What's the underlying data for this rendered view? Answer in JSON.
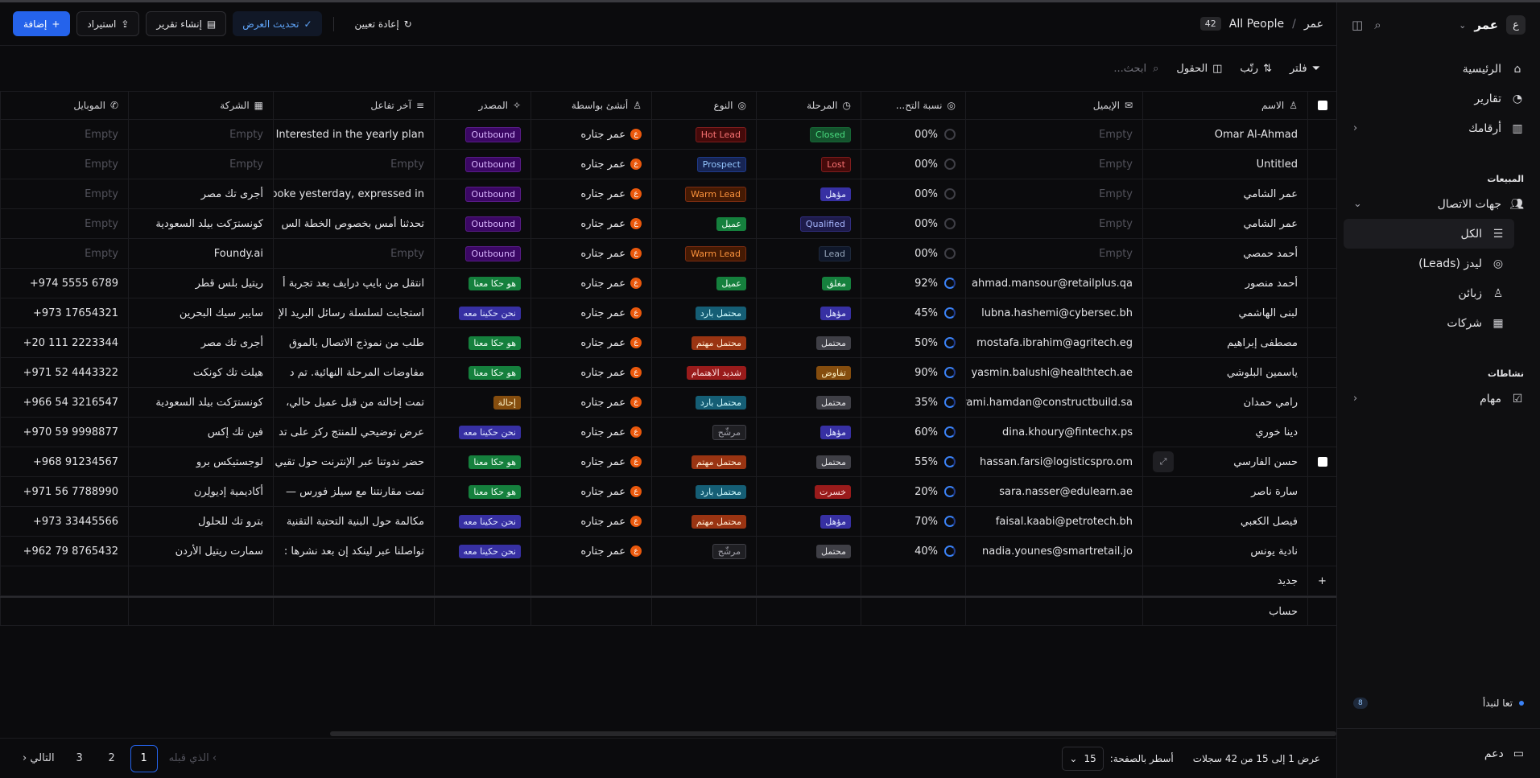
{
  "sidebar": {
    "avatar": "ع",
    "workspace": "عمر",
    "nav": [
      {
        "label": "الرئيسية"
      },
      {
        "label": "تقارير"
      },
      {
        "label": "أرقامك"
      }
    ],
    "sales_section": "المبيعات",
    "contacts": "جهات الاتصال",
    "contacts_sub": [
      {
        "label": "الكل"
      },
      {
        "label": "ليدز (Leads)"
      },
      {
        "label": "زبائن"
      },
      {
        "label": "شركات"
      }
    ],
    "activities_section": "نشاطات",
    "tasks": "مهام",
    "lets_start": "تعا لنبدأ",
    "lets_start_count": "8",
    "support": "دعم"
  },
  "topbar": {
    "crumb_root": "عمر",
    "crumb_sep": "/",
    "crumb_current": "All People",
    "count": "42",
    "reset": "إعادة تعيين",
    "update_view": "تحديث العرض",
    "create_report": "إنشاء تقرير",
    "import": "استيراد",
    "add": "إضافة"
  },
  "toolbar": {
    "filter": "فلتر",
    "sort": "رتّب",
    "fields": "الحقول",
    "search_placeholder": "ابحث..."
  },
  "columns": {
    "name": "الاسم",
    "email": "الإيميل",
    "pct": "نسبة التح...",
    "stage": "المرحلة",
    "type": "النوع",
    "created_by": "أنشئ بواسطة",
    "source": "المصدر",
    "last": "آخر تفاعل",
    "company": "الشركة",
    "mobile": "الموبايل"
  },
  "empty": "Empty",
  "rows": [
    {
      "name": "Omar Al-Ahmad",
      "email": "",
      "pct": "00%",
      "ring": false,
      "stage": "Closed",
      "stage_c": "t-green",
      "type": "Hot Lead",
      "type_c": "t-red",
      "by": "عمر جتاره",
      "src": "Outbound",
      "src_c": "t-purple",
      "last": "Interested in the yearly plan - ",
      "co": "",
      "mob": ""
    },
    {
      "name": "Untitled",
      "email": "",
      "pct": "00%",
      "ring": false,
      "stage": "Lost",
      "stage_c": "t-red",
      "type": "Prospect",
      "type_c": "t-blue",
      "by": "عمر جتاره",
      "src": "Outbound",
      "src_c": "t-purple",
      "last": "",
      "co": "",
      "mob": ""
    },
    {
      "name": "عمر الشامي",
      "email": "",
      "pct": "00%",
      "ring": false,
      "stage": "مؤهل",
      "stage_c": "t-indigo",
      "type": "Warm Lead",
      "type_c": "t-amber2",
      "by": "عمر جتاره",
      "src": "Outbound",
      "src_c": "t-purple",
      "last": "Spoke yesterday, expressed in",
      "co": "أجرى تك مصر",
      "mob": ""
    },
    {
      "name": "عمر الشامي",
      "email": "",
      "pct": "00%",
      "ring": false,
      "stage": "Qualified",
      "stage_c": "t-indigo2",
      "type": "عميل",
      "type_c": "t-green2",
      "by": "عمر جتاره",
      "src": "Outbound",
      "src_c": "t-purple",
      "last": "تحدثنا أمس بخصوص الخطة الس",
      "co": "كونسترَكت بيلد السعودية",
      "mob": ""
    },
    {
      "name": "أحمد حمصي",
      "email": "",
      "pct": "00%",
      "ring": false,
      "stage": "Lead",
      "stage_c": "t-slate",
      "type": "Warm Lead",
      "type_c": "t-amber2",
      "by": "عمر جتاره",
      "src": "Outbound",
      "src_c": "t-purple",
      "last": "",
      "co": "Foundy.ai",
      "mob": ""
    },
    {
      "name": "أحمد منصور",
      "email": "ahmad.mansour@retailplus.qa",
      "pct": "92%",
      "ring": true,
      "stage": "مغلق",
      "stage_c": "t-green2",
      "type": "عميل",
      "type_c": "t-green2",
      "by": "عمر جتاره",
      "src": "هو حكا معنا",
      "src_c": "t-green2",
      "last": "انتقل من بايپ درايف بعد تجربة أ",
      "co": "ريتيل بلس قطر",
      "mob": "+974 5555 6789"
    },
    {
      "name": "لبنى الهاشمي",
      "email": "lubna.hashemi@cybersec.bh",
      "pct": "45%",
      "ring": true,
      "stage": "مؤهل",
      "stage_c": "t-indigo",
      "type": "محتمل بارد",
      "type_c": "t-cyan",
      "by": "عمر جتاره",
      "src": "نحن حكينا معه",
      "src_c": "t-indigo",
      "last": "استجابت لسلسلة رسائل البريد الإ",
      "co": "سايبر سيك البحرين",
      "mob": "+973 17654321"
    },
    {
      "name": "مصطفى إبراهيم",
      "email": "mostafa.ibrahim@agritech.eg",
      "pct": "50%",
      "ring": true,
      "stage": "محتمل",
      "stage_c": "t-gray",
      "type": "محتمل مهتم",
      "type_c": "t-orange",
      "by": "عمر جتاره",
      "src": "هو حكا معنا",
      "src_c": "t-green2",
      "last": "طلب من نموذج الاتصال بالموق",
      "co": "أجرى تك مصر",
      "mob": "+20 111 2223344"
    },
    {
      "name": "ياسمين البلوشي",
      "email": "yasmin.balushi@healthtech.ae",
      "pct": "90%",
      "ring": true,
      "stage": "تفاوض",
      "stage_c": "t-amber",
      "type": "شديد الاهتمام",
      "type_c": "t-red2",
      "by": "عمر جتاره",
      "src": "هو حكا معنا",
      "src_c": "t-green2",
      "last": "مفاوضات المرحلة النهائية. تم د",
      "co": "هيلث تك كونكت",
      "mob": "+971 52 4443322"
    },
    {
      "name": "رامي حمدان",
      "email": "rami.hamdan@constructbuild.sa",
      "pct": "35%",
      "ring": true,
      "stage": "محتمل",
      "stage_c": "t-gray",
      "type": "محتمل بارد",
      "type_c": "t-cyan",
      "by": "عمر جتاره",
      "src": "إحالة",
      "src_c": "t-amber",
      "last": "تمت إحالته من قبل عميل حالي، ",
      "co": "كونسترَكت بيلد السعودية",
      "mob": "+966 54 3216547"
    },
    {
      "name": "دينا خوري",
      "email": "dina.khoury@fintechx.ps",
      "pct": "60%",
      "ring": true,
      "stage": "مؤهل",
      "stage_c": "t-indigo",
      "type": "مرشّح",
      "type_c": "t-gray2",
      "by": "عمر جتاره",
      "src": "نحن حكينا معه",
      "src_c": "t-indigo",
      "last": "عرض توضيحي للمنتج ركز على تد",
      "co": "فين تك إكس",
      "mob": "+970 59 9998877"
    },
    {
      "name": "حسن الفارسي",
      "email": "hassan.farsi@logisticspro.om",
      "pct": "55%",
      "ring": true,
      "stage": "محتمل",
      "stage_c": "t-gray",
      "type": "محتمل مهتم",
      "type_c": "t-orange",
      "by": "عمر جتاره",
      "src": "هو حكا معنا",
      "src_c": "t-green2",
      "last": "حضر ندوتنا عبر الإنترنت حول تقيي",
      "co": "لوجستيكس برو",
      "mob": "+968 91234567"
    },
    {
      "name": "سارة ناصر",
      "email": "sara.nasser@edulearn.ae",
      "pct": "20%",
      "ring": true,
      "stage": "خسرت",
      "stage_c": "t-red2",
      "type": "محتمل بارد",
      "type_c": "t-cyan",
      "by": "عمر جتاره",
      "src": "هو حكا معنا",
      "src_c": "t-green2",
      "last": "تمت مقارنتنا مع سيلز فورس — ",
      "co": "أكاديمية إديولِرن",
      "mob": "+971 56 7788990"
    },
    {
      "name": "فيصل الكعبي",
      "email": "faisal.kaabi@petrotech.bh",
      "pct": "70%",
      "ring": true,
      "stage": "مؤهل",
      "stage_c": "t-indigo",
      "type": "محتمل مهتم",
      "type_c": "t-orange",
      "by": "عمر جتاره",
      "src": "نحن حكينا معه",
      "src_c": "t-indigo",
      "last": "مكالمة حول البنية التحتية التقنية",
      "co": "بترو تك للحلول",
      "mob": "+973 33445566"
    },
    {
      "name": "نادية يونس",
      "email": "nadia.younes@smartretail.jo",
      "pct": "40%",
      "ring": true,
      "stage": "محتمل",
      "stage_c": "t-gray",
      "type": "مرشّح",
      "type_c": "t-gray2",
      "by": "عمر جتاره",
      "src": "نحن حكينا معه",
      "src_c": "t-indigo",
      "last": "تواصلنا عبر لينكد إن بعد نشرها :",
      "co": "سمارت ريتيل الأردن",
      "mob": "+962 79 8765432"
    }
  ],
  "new_row": "جديد",
  "calc": "حساب",
  "footer": {
    "info": "عرض 1 إلى 15 من 42 سجلات",
    "per_page_label": "أسطر بالصفحة:",
    "per_page": "15",
    "prev": "الذي قبله",
    "pages": [
      "1",
      "2",
      "3"
    ],
    "next": "التالي"
  }
}
